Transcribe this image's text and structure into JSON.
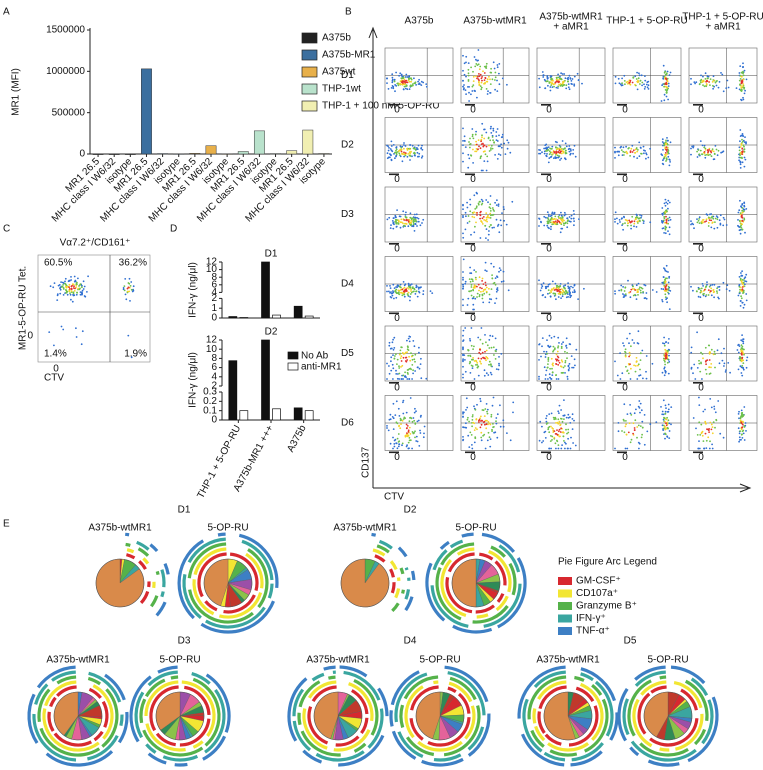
{
  "panel_labels": [
    "A",
    "B",
    "C",
    "D",
    "E"
  ],
  "chart_data": [
    {
      "type": "bar",
      "ylabel": "MR1 (MFI)",
      "categories": [
        "MR1 26.5",
        "MHC class I W6/32",
        "isotype",
        "MR1 26.5",
        "MHC class I W6/32",
        "isotype",
        "MR1 26.5",
        "MHC class I W6/32",
        "isotype",
        "MR1 26.5",
        "MHC class I W6/32",
        "isotype",
        "MR1 26.5",
        "MHC class I W6/32",
        "isotype"
      ],
      "series": [
        {
          "name": "A375b",
          "color": "#222222",
          "values": [
            0,
            0,
            0,
            null,
            null,
            null,
            null,
            null,
            null,
            null,
            null,
            null,
            null,
            null,
            null
          ]
        },
        {
          "name": "A375b-MR1",
          "color": "#3b6f9f",
          "values": [
            null,
            null,
            null,
            1030000,
            5000,
            3000,
            null,
            null,
            null,
            null,
            null,
            null,
            null,
            null,
            null
          ]
        },
        {
          "name": "A375wt",
          "color": "#e8b04a",
          "values": [
            null,
            null,
            null,
            null,
            null,
            null,
            8000,
            100000,
            3000,
            null,
            null,
            null,
            null,
            null,
            null
          ]
        },
        {
          "name": "THP-1wt",
          "color": "#b9e2cc",
          "values": [
            null,
            null,
            null,
            null,
            null,
            null,
            null,
            null,
            null,
            30000,
            280000,
            5000,
            null,
            null,
            null
          ]
        },
        {
          "name": "THP-1 + 100 nM 5-OP-RU",
          "color": "#f1efb2",
          "values": [
            null,
            null,
            null,
            null,
            null,
            null,
            null,
            null,
            null,
            null,
            null,
            null,
            40000,
            290000,
            6000
          ]
        }
      ],
      "ylim": [
        0,
        1500000
      ],
      "yticks": [
        0,
        500000,
        1000000,
        1500000
      ],
      "legend": "right"
    },
    {
      "type": "bar",
      "title": "D1",
      "ylabel": "IFN-γ (ng/μl)",
      "series": [
        {
          "color": "#111111",
          "values": [
            0.15,
            12,
            1.2
          ]
        },
        {
          "color": "#ffffff",
          "values": [
            0.05,
            0.3,
            0.2
          ]
        }
      ],
      "ylim": [
        0,
        12
      ],
      "ybreak": [
        2,
        4
      ],
      "yticks": [
        0,
        1,
        2,
        4,
        6,
        8,
        10,
        12
      ]
    },
    {
      "type": "bar",
      "title": "D2",
      "ylabel": "IFN-γ (ng/μl)",
      "categories": [
        "THP-1 + 5-OP-RU",
        "A375b-MR1 +++",
        "A375b"
      ],
      "series": [
        {
          "name": "No Ab",
          "color": "#111111",
          "values": [
            7.5,
            12,
            0.13
          ]
        },
        {
          "name": "anti-MR1",
          "color": "#ffffff",
          "values": [
            0.1,
            0.12,
            0.1
          ]
        }
      ],
      "ylim": [
        0,
        12
      ],
      "ybreak": [
        0.3,
        2
      ],
      "yticks": [
        0,
        0.1,
        0.2,
        0.3,
        2,
        4,
        6,
        8,
        10,
        12
      ],
      "legend": "right"
    }
  ],
  "flow_grid": {
    "columns": [
      [
        "A375b"
      ],
      [
        "A375b-wtMR1"
      ],
      [
        "A375b-wtMR1",
        "+ aMR1"
      ],
      [
        "THP-1 + 5-OP-RU"
      ],
      [
        "THP-1 + 5-OP-RU",
        "+ aMR1"
      ]
    ],
    "rows": [
      "D1",
      "D2",
      "D3",
      "D4",
      "D5",
      "D6"
    ],
    "ylabel": "CD137",
    "xlabel": "CTV",
    "zero": "0"
  },
  "flow_plot": {
    "title": "Vα7.2⁺/CD161⁺",
    "ylabel": "MR1-5-OP-RU Tet.",
    "xlabel": "CTV",
    "zero": "0",
    "quadrants": [
      "60.5%",
      "36.2%",
      "1.4%",
      "1.9%"
    ]
  },
  "pie_panel": {
    "groups": [
      {
        "label": "D1",
        "pies": [
          "A375b-wtMR1",
          "5-OP-RU"
        ]
      },
      {
        "label": "D2",
        "pies": [
          "A375b-wtMR1",
          "5-OP-RU"
        ]
      },
      {
        "label": "D3",
        "pies": [
          "A375b-wtMR1",
          "5-OP-RU"
        ]
      },
      {
        "label": "D4",
        "pies": [
          "A375b-wtMR1",
          "5-OP-RU"
        ]
      },
      {
        "label": "D5",
        "pies": [
          "A375b-wtMR1",
          "5-OP-RU"
        ]
      }
    ],
    "legend": {
      "title": "Pie Figure Arc Legend",
      "items": [
        {
          "name": "GM-CSF⁺",
          "color": "#d7282f"
        },
        {
          "name": "CD107a⁺",
          "color": "#f2e633"
        },
        {
          "name": "Granzyme B⁺",
          "color": "#55b24a"
        },
        {
          "name": "IFN-γ⁺",
          "color": "#3aa6a0"
        },
        {
          "name": "TNF-α⁺",
          "color": "#3d7fc4"
        }
      ]
    }
  }
}
